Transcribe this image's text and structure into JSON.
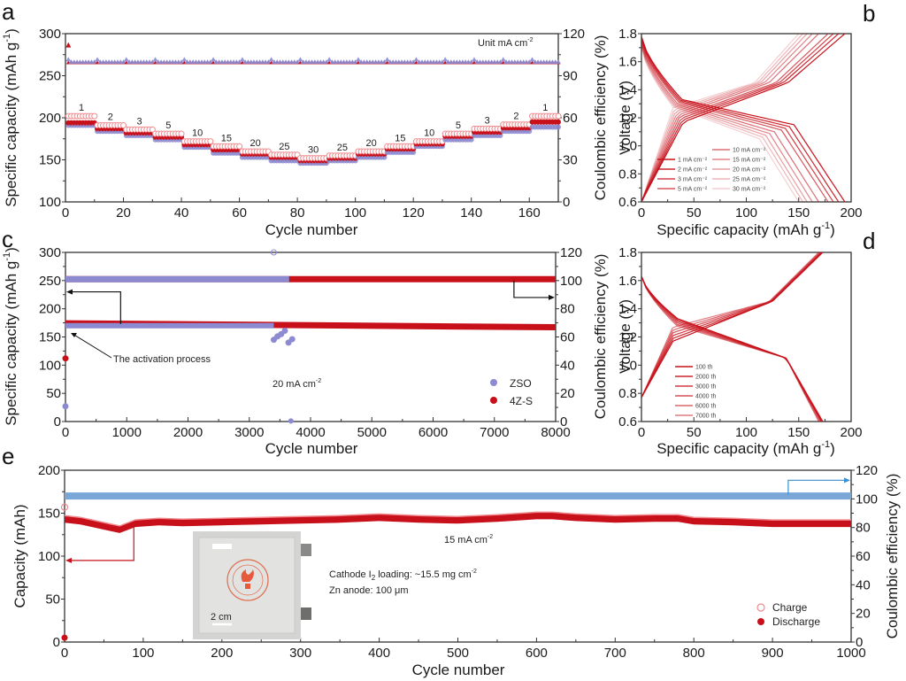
{
  "colors": {
    "red": "#c8101a",
    "red_light": "#f08a8f",
    "purple": "#8c8ad0",
    "blue": "#7aa7d8",
    "arrow_black": "#111111",
    "arrow_red": "#c8101a",
    "arrow_blue": "#3a8fd0"
  },
  "chart_data": [
    {
      "panel": "a",
      "type": "scatter",
      "xlabel": "Cycle number",
      "ylabel": "Specific capacity (mAh g⁻¹)",
      "y2label": "Coulombic efficiency (%)",
      "xlim": [
        0,
        170
      ],
      "ylim": [
        100,
        300
      ],
      "y2lim": [
        0,
        120
      ],
      "xticks": [
        0,
        20,
        40,
        60,
        80,
        100,
        120,
        140,
        160
      ],
      "yticks": [
        100,
        150,
        200,
        250,
        300
      ],
      "y2ticks": [
        0,
        30,
        60,
        90,
        120
      ],
      "annotation": "Unit mA cm⁻²",
      "rate_steps": [
        {
          "label": "1",
          "start": 1,
          "end": 10,
          "charge": 202,
          "discharge": 194,
          "zso": 191
        },
        {
          "label": "2",
          "start": 11,
          "end": 20,
          "charge": 191,
          "discharge": 187,
          "zso": 184
        },
        {
          "label": "3",
          "start": 21,
          "end": 30,
          "charge": 186,
          "discharge": 182,
          "zso": 179
        },
        {
          "label": "5",
          "start": 31,
          "end": 40,
          "charge": 181,
          "discharge": 177,
          "zso": 174
        },
        {
          "label": "10",
          "start": 41,
          "end": 50,
          "charge": 172,
          "discharge": 168,
          "zso": 165
        },
        {
          "label": "15",
          "start": 51,
          "end": 60,
          "charge": 166,
          "discharge": 162,
          "zso": 158
        },
        {
          "label": "20",
          "start": 61,
          "end": 70,
          "charge": 160,
          "discharge": 157,
          "zso": 153
        },
        {
          "label": "25",
          "start": 71,
          "end": 80,
          "charge": 156,
          "discharge": 153,
          "zso": 149
        },
        {
          "label": "30",
          "start": 81,
          "end": 90,
          "charge": 152,
          "discharge": 149,
          "zso": 146
        },
        {
          "label": "25",
          "start": 91,
          "end": 100,
          "charge": 155,
          "discharge": 152,
          "zso": 149
        },
        {
          "label": "20",
          "start": 101,
          "end": 110,
          "charge": 160,
          "discharge": 157,
          "zso": 153
        },
        {
          "label": "15",
          "start": 111,
          "end": 120,
          "charge": 166,
          "discharge": 163,
          "zso": 159
        },
        {
          "label": "10",
          "start": 121,
          "end": 130,
          "charge": 172,
          "discharge": 169,
          "zso": 166
        },
        {
          "label": "5",
          "start": 131,
          "end": 140,
          "charge": 181,
          "discharge": 178,
          "zso": 174
        },
        {
          "label": "3",
          "start": 141,
          "end": 150,
          "charge": 187,
          "discharge": 183,
          "zso": 179
        },
        {
          "label": "2",
          "start": 151,
          "end": 160,
          "charge": 192,
          "discharge": 188,
          "zso": 184
        },
        {
          "label": "1",
          "start": 161,
          "end": 170,
          "charge": 202,
          "discharge": 195,
          "zso": 189
        }
      ],
      "ce_4zs": 99.5,
      "ce_zso": 100
    },
    {
      "panel": "b",
      "type": "line",
      "xlabel": "Specific capacity (mAh g⁻¹)",
      "ylabel": "Voltage (V)",
      "xlim": [
        0,
        200
      ],
      "ylim": [
        0.6,
        1.8
      ],
      "xticks": [
        0,
        50,
        100,
        150,
        200
      ],
      "yticks": [
        0.6,
        0.8,
        1.0,
        1.2,
        1.4,
        1.6,
        1.8
      ],
      "series": [
        {
          "name": "1 mA cm⁻²",
          "capacity": 194
        },
        {
          "name": "2 mA cm⁻²",
          "capacity": 188
        },
        {
          "name": "3 mA cm⁻²",
          "capacity": 183
        },
        {
          "name": "5 mA cm⁻²",
          "capacity": 178
        },
        {
          "name": "10 mA cm⁻²",
          "capacity": 169
        },
        {
          "name": "15 mA cm⁻²",
          "capacity": 163
        },
        {
          "name": "20 mA cm⁻²",
          "capacity": 158
        },
        {
          "name": "25 mA cm⁻²",
          "capacity": 154
        },
        {
          "name": "30 mA cm⁻²",
          "capacity": 150
        }
      ]
    },
    {
      "panel": "c",
      "type": "scatter",
      "xlabel": "Cycle number",
      "ylabel": "Specific capacity (mAh g⁻¹)",
      "y2label": "Coulombic efficiency (%)",
      "xlim": [
        0,
        8000
      ],
      "ylim": [
        0,
        300
      ],
      "y2lim": [
        0,
        120
      ],
      "xticks": [
        0,
        1000,
        2000,
        3000,
        4000,
        5000,
        6000,
        7000,
        8000
      ],
      "yticks": [
        0,
        50,
        100,
        150,
        200,
        250,
        300
      ],
      "y2ticks": [
        0,
        20,
        40,
        60,
        80,
        100,
        120
      ],
      "annotation": "20 mA cm⁻²",
      "callout": "The activation process",
      "legend": [
        "ZSO",
        "4Z-S"
      ],
      "series": [
        {
          "name": "4Z-S",
          "capacity_start": 175,
          "capacity_end": 168,
          "end_cycle": 8000,
          "ce": 101,
          "first_point": 112
        },
        {
          "name": "ZSO",
          "capacity_start": 170,
          "capacity_end": 169,
          "end_cycle": 3400,
          "ce": 101,
          "first_point": 27,
          "failure_points": [
            145,
            155,
            140
          ]
        }
      ]
    },
    {
      "panel": "d",
      "type": "line",
      "xlabel": "Specific capacity (mAh g⁻¹)",
      "ylabel": "Voltage (V)",
      "xlim": [
        0,
        200
      ],
      "ylim": [
        0.6,
        1.8
      ],
      "xticks": [
        0,
        50,
        100,
        150,
        200
      ],
      "yticks": [
        0.6,
        0.8,
        1.0,
        1.2,
        1.4,
        1.6,
        1.8
      ],
      "series": [
        {
          "name": "100 th",
          "capacity": 172
        },
        {
          "name": "2000 th",
          "capacity": 173
        },
        {
          "name": "3000 th",
          "capacity": 172
        },
        {
          "name": "4000 th",
          "capacity": 171
        },
        {
          "name": "6000 th",
          "capacity": 170
        },
        {
          "name": "7000 th",
          "capacity": 169
        }
      ]
    },
    {
      "panel": "e",
      "type": "scatter",
      "xlabel": "Cycle number",
      "ylabel": "Capacity (mAh)",
      "y2label": "Coulombic efficiency (%)",
      "xlim": [
        0,
        1000
      ],
      "ylim": [
        0,
        200
      ],
      "y2lim": [
        0,
        120
      ],
      "xticks": [
        0,
        100,
        200,
        300,
        400,
        500,
        600,
        700,
        800,
        900,
        1000
      ],
      "yticks": [
        0,
        50,
        100,
        150,
        200
      ],
      "y2ticks": [
        0,
        20,
        40,
        60,
        80,
        100,
        120
      ],
      "annotation": "15 mA cm⁻²",
      "inset_text": [
        "Cathode I₂ loading: ~15.5 mg cm⁻²",
        "Zn anode: 100 μm"
      ],
      "scale_bar": "2 cm",
      "legend": [
        "Charge",
        "Discharge"
      ],
      "ce": 102,
      "capacity_profile": {
        "x": [
          0,
          20,
          40,
          60,
          70,
          90,
          120,
          150,
          200,
          250,
          300,
          350,
          400,
          450,
          500,
          550,
          600,
          620,
          650,
          700,
          750,
          780,
          800,
          850,
          900,
          950,
          1000
        ],
        "y": [
          143,
          141,
          137,
          133,
          131,
          138,
          140,
          139,
          140,
          141,
          142,
          143,
          145,
          143,
          142,
          144,
          147,
          147,
          145,
          143,
          144,
          144,
          141,
          140,
          138,
          138,
          138
        ]
      },
      "first_points": {
        "charge": 157,
        "discharge": 5
      }
    }
  ],
  "panels": {
    "a": {
      "letter": "a",
      "xlabel": "Cycle number",
      "ylabel": "Specific capacity (mAh g",
      "y2label": "Coulombic efficiency (%)",
      "annotation_main": "Unit mA cm",
      "annotation_sup": "-2"
    },
    "b": {
      "letter": "b",
      "xlabel": "Specific capacity (mAh g",
      "ylabel": "Voltage (V)"
    },
    "c": {
      "letter": "c",
      "xlabel": "Cycle number",
      "ylabel": "Specific capacity (mAh g",
      "y2label": "Coulombic efficiency (%)",
      "annotation_main": "20 mA cm",
      "annotation_sup": "-2",
      "callout": "The activation process",
      "legend_zso": "ZSO",
      "legend_4zs": "4Z-S"
    },
    "d": {
      "letter": "d",
      "xlabel": "Specific capacity (mAh g",
      "ylabel": "Voltage (V)"
    },
    "e": {
      "letter": "e",
      "xlabel": "Cycle number",
      "ylabel": "Capacity (mAh)",
      "y2label": "Coulombic efficiency (%)",
      "annotation_main": "15 mA cm",
      "annotation_sup": "-2",
      "inset_line1": "Cathode I",
      "inset_line1_sub": "2",
      "inset_line1_rest": " loading: ~15.5 mg cm",
      "inset_line1_sup": "-2",
      "inset_line2": "Zn anode: 100 μm",
      "scale_bar": "2 cm",
      "legend_charge": "Charge",
      "legend_discharge": "Discharge"
    },
    "sup_minus1": "-1",
    "sup_close": ")"
  }
}
